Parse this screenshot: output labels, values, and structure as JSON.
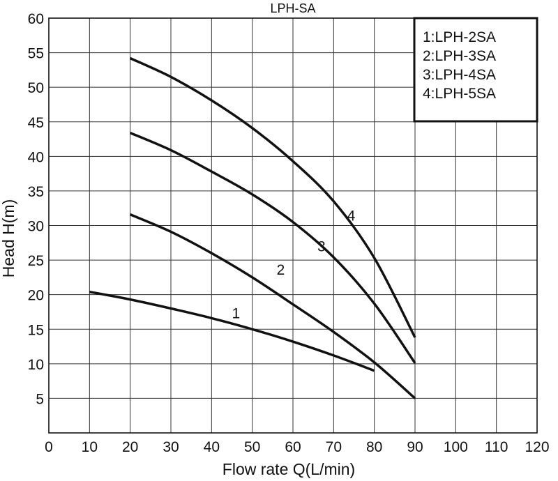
{
  "chart_data": {
    "type": "line",
    "title": "LPH-SA",
    "xlabel": "Flow rate Q(L/min)",
    "ylabel": "Head H(m)",
    "xlim": [
      0,
      120
    ],
    "ylim": [
      0,
      60
    ],
    "x_ticks": [
      0,
      10,
      20,
      30,
      40,
      50,
      60,
      70,
      80,
      90,
      100,
      110,
      120
    ],
    "y_ticks": [
      5,
      10,
      15,
      20,
      25,
      30,
      35,
      40,
      45,
      50,
      55,
      60
    ],
    "grid": true,
    "legend_position": "top-right",
    "legend": [
      "1:LPH-2SA",
      "2:LPH-3SA",
      "3:LPH-4SA",
      "4:LPH-5SA"
    ],
    "series": [
      {
        "curve_label": "1",
        "label_at": [
          46,
          17.4
        ],
        "points": [
          [
            10,
            20.4
          ],
          [
            20,
            19.3
          ],
          [
            30,
            18.0
          ],
          [
            40,
            16.6
          ],
          [
            50,
            15.0
          ],
          [
            60,
            13.2
          ],
          [
            70,
            11.2
          ],
          [
            80,
            9.0
          ]
        ]
      },
      {
        "curve_label": "2",
        "label_at": [
          57,
          23.7
        ],
        "points": [
          [
            20,
            31.6
          ],
          [
            30,
            29.1
          ],
          [
            40,
            26.0
          ],
          [
            50,
            22.5
          ],
          [
            60,
            18.6
          ],
          [
            70,
            14.6
          ],
          [
            80,
            10.2
          ],
          [
            90,
            5.0
          ]
        ]
      },
      {
        "curve_label": "3",
        "label_at": [
          67,
          27.1
        ],
        "points": [
          [
            20,
            43.4
          ],
          [
            30,
            40.9
          ],
          [
            40,
            37.8
          ],
          [
            50,
            34.5
          ],
          [
            60,
            30.5
          ],
          [
            70,
            25.4
          ],
          [
            80,
            18.7
          ],
          [
            90,
            10.1
          ]
        ]
      },
      {
        "curve_label": "4",
        "label_at": [
          74.3,
          31.5
        ],
        "points": [
          [
            20,
            54.2
          ],
          [
            30,
            51.5
          ],
          [
            40,
            48.1
          ],
          [
            50,
            44.1
          ],
          [
            60,
            39.3
          ],
          [
            70,
            33.5
          ],
          [
            80,
            25.3
          ],
          [
            90,
            13.8
          ]
        ]
      }
    ]
  }
}
